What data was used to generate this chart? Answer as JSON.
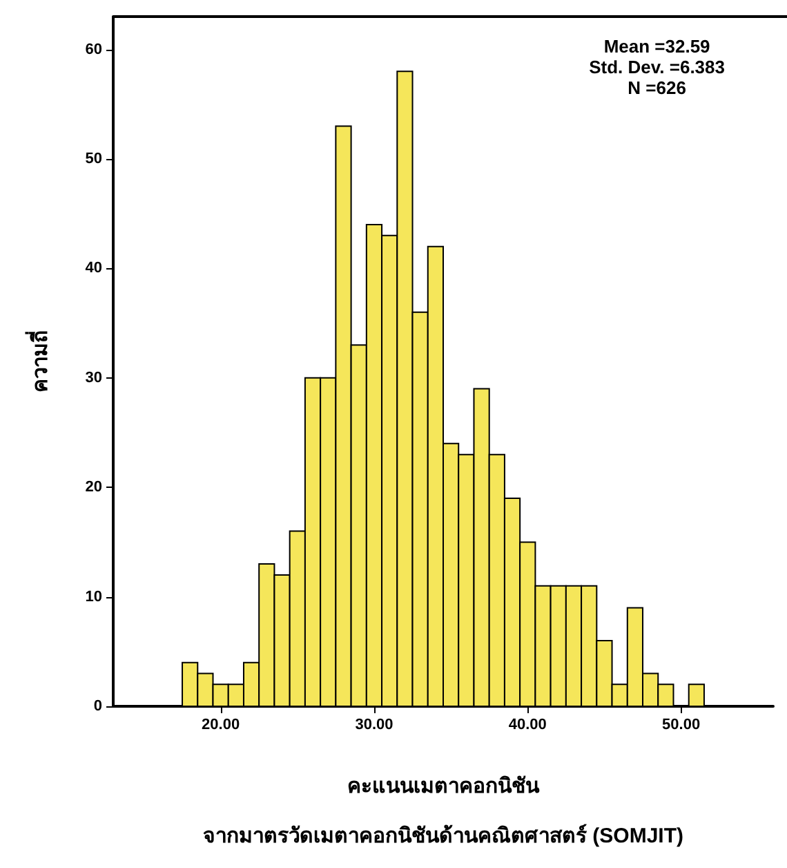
{
  "chart_data": {
    "type": "histogram",
    "xlabel": "คะแนนเมตาคอกนิชัน\nจากมาตรวัดเมตาคอกนิชันด้านคณิตศาสตร์ (SOMJIT)",
    "ylabel": "ความถี่",
    "annotations": [
      "Mean =32.59\nStd. Dev. =6.383\nN =626"
    ],
    "bins": [
      17.5,
      18.5,
      19.5,
      20.5,
      21.5,
      22.5,
      23.5,
      24.5,
      25.5,
      26.5,
      27.5,
      28.5,
      29.5,
      30.5,
      31.5,
      32.5,
      33.5,
      34.5,
      35.5,
      36.5,
      37.5,
      38.5,
      39.5,
      40.5,
      41.5,
      42.5,
      43.5,
      44.5,
      45.5,
      46.5,
      47.5,
      48.5,
      49.5,
      50.5,
      51.5
    ],
    "values": [
      4,
      3,
      2,
      2,
      4,
      13,
      12,
      16,
      30,
      30,
      53,
      33,
      44,
      43,
      58,
      36,
      42,
      24,
      23,
      29,
      23,
      19,
      15,
      11,
      11,
      11,
      11,
      6,
      2,
      9,
      3,
      2,
      0,
      2
    ],
    "color": "#f5e65a",
    "xlim": [
      13,
      56
    ],
    "xticks": [
      {
        "value": 20,
        "label": "20.00"
      },
      {
        "value": 30,
        "label": "30.00"
      },
      {
        "value": 40,
        "label": "40.00"
      },
      {
        "value": 50,
        "label": "50.00"
      }
    ],
    "ylim": [
      0,
      63
    ],
    "yticks": [
      0,
      10,
      20,
      30,
      40,
      50,
      60
    ],
    "grid": false
  }
}
